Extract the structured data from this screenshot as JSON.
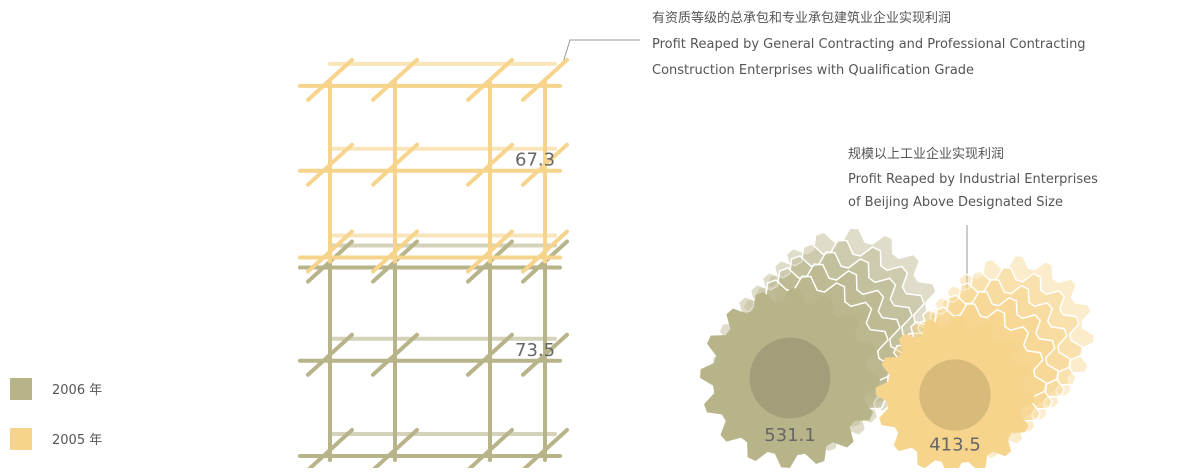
{
  "legend": [
    {
      "label": "2006 年",
      "color": "#b8b48a"
    },
    {
      "label": "2005 年",
      "color": "#f6d48c"
    }
  ],
  "construction": {
    "title_zh": "有资质等级的总承包和专业承包建筑业企业实现利润",
    "title_en": [
      "Profit Reaped by General Contracting and Professional Contracting",
      "Construction Enterprises with Qualification Grade"
    ],
    "values": [
      73.5,
      67.3
    ]
  },
  "industry": {
    "title_zh": "规模以上工业企业实现利润",
    "title_en": [
      "Profit Reaped by Industrial Enterprises",
      "of Beijing Above Designated Size"
    ],
    "values": [
      531.1,
      413.5
    ]
  }
}
